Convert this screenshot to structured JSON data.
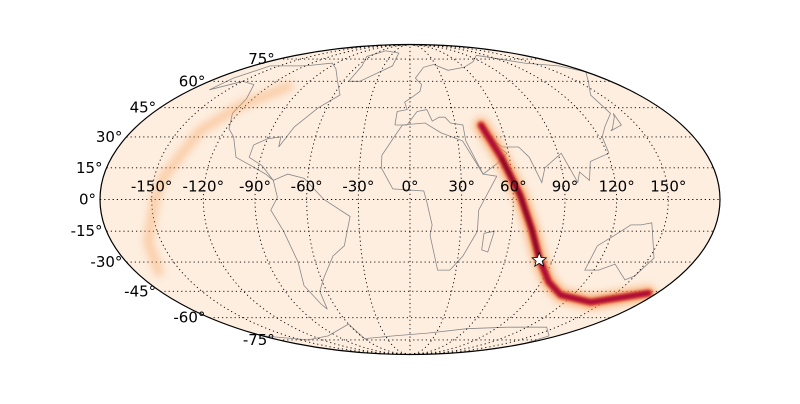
{
  "map": {
    "projection": "mollweide",
    "background_color": "#fdeee0",
    "grid": true,
    "longitude_labels": [
      "-150°",
      "-120°",
      "-90°",
      "-60°",
      "-30°",
      "0°",
      "30°",
      "60°",
      "90°",
      "120°",
      "150°"
    ],
    "longitude_values": [
      -150,
      -120,
      -90,
      -60,
      -30,
      0,
      30,
      60,
      90,
      120,
      150
    ],
    "latitude_labels": [
      "75°",
      "60°",
      "45°",
      "30°",
      "15°",
      "0°",
      "-15°",
      "-30°",
      "-45°",
      "-60°",
      "-75°"
    ],
    "latitude_values": [
      75,
      60,
      45,
      30,
      15,
      0,
      -15,
      -30,
      -45,
      -60,
      -75
    ],
    "probability_arc": {
      "colormap": [
        "#fdeee0",
        "#f7a15a",
        "#d7301f",
        "#9e0142",
        "#3b0010"
      ],
      "main_arc": [
        [
          47,
          36
        ],
        [
          55,
          20
        ],
        [
          64,
          2
        ],
        [
          72,
          -14
        ],
        [
          81,
          -28
        ],
        [
          95,
          -40
        ],
        [
          111,
          -47
        ],
        [
          140,
          -51
        ],
        [
          174,
          -46
        ]
      ],
      "faint_arc": [
        [
          -103,
          57
        ],
        [
          -124,
          46
        ],
        [
          -136,
          33
        ],
        [
          -145,
          10
        ],
        [
          -148,
          0
        ],
        [
          -158,
          -20
        ],
        [
          -165,
          -35
        ]
      ]
    },
    "marker": {
      "icon": "star-icon",
      "lon": 81.5,
      "lat": -29,
      "color": "#ffffff"
    }
  }
}
